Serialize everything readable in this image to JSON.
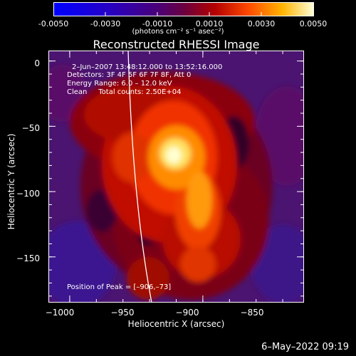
{
  "colorbar": {
    "ticks": [
      "-0.0050",
      "-0.0030",
      "-0.0010",
      "0.0010",
      "0.0030",
      "0.0050"
    ],
    "units_label": "(photons cm⁻² s⁻¹ asec⁻²)"
  },
  "chart_data": {
    "type": "heatmap",
    "title": "Reconstructed RHESSI Image",
    "xlabel": "Heliocentric X (arcsec)",
    "ylabel": "Heliocentric Y (arcsec)",
    "xlim": [
      -1008,
      -912
    ],
    "ylim": [
      -185,
      8
    ],
    "x_ticks": [
      "−1000",
      "−950",
      "−900",
      "−850"
    ],
    "y_ticks": [
      "0",
      "−50",
      "−100",
      "−150"
    ],
    "color_range": [
      -0.005,
      0.005
    ],
    "peak": {
      "x": -906,
      "y": -73
    },
    "annotations": {
      "time_range": "2–Jun–2007 13:48:12.000 to 13:52:16.000",
      "detectors": "Detectors: 3F 4F 5F 6F 7F 8F, Att 0",
      "energy": "Energy Range: 6.0 – 12.0 keV",
      "method": "Clean     Total counts: 2.50E+04",
      "peak_position": "Position of Peak = [–906,–73]"
    }
  },
  "footer": {
    "date": "6–May–2022 09:19"
  }
}
